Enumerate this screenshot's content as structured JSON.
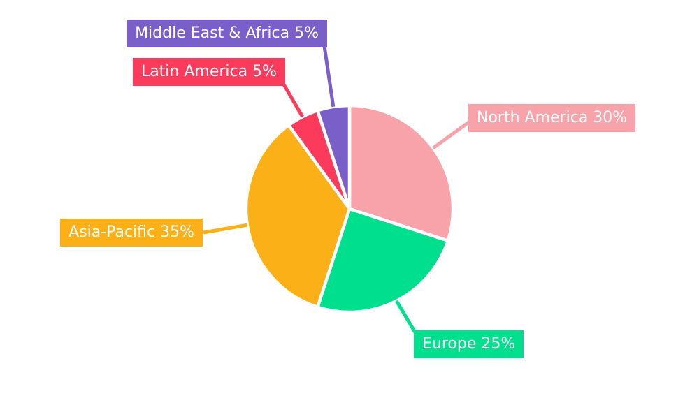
{
  "chart_data": {
    "type": "pie",
    "title": "",
    "legend": "none",
    "background_color": "#ffffff",
    "slice_border_color": "#ffffff",
    "label_text_color": "#ffffff",
    "start_angle_deg": 0,
    "direction": "clockwise",
    "labels_position": "outside-with-leader-lines",
    "total": 100,
    "unit": "%",
    "slices": [
      {
        "label": "North America",
        "value": 30,
        "display": "North America 30%",
        "color": "#f7a3a9"
      },
      {
        "label": "Europe",
        "value": 25,
        "display": "Europe 25%",
        "color": "#00df8e"
      },
      {
        "label": "Asia-Pacific",
        "value": 35,
        "display": "Asia-Pacific 35%",
        "color": "#fbb017"
      },
      {
        "label": "Latin America",
        "value": 5,
        "display": "Latin America 5%",
        "color": "#fb3a5c"
      },
      {
        "label": "Middle East & Africa",
        "value": 5,
        "display": "Middle East & Africa 5%",
        "color": "#7b5fc8"
      }
    ]
  }
}
